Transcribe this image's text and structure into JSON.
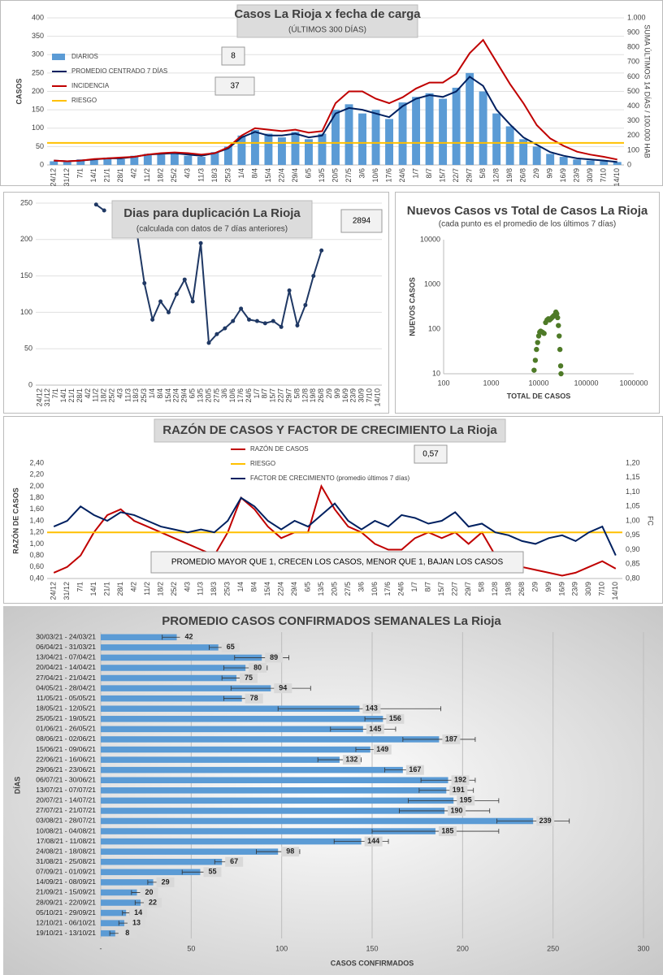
{
  "chart_data": [
    {
      "type": "combo",
      "title": "Casos La Rioja x fecha de carga",
      "subtitle": "(ÚLTIMOS 300 DÍAS)",
      "ylabel": "CASOS",
      "y2label": "SUMA ÚLTIMOS 14 DÍAS / 100.000 HAB",
      "legend": "top-left",
      "grid": true,
      "annotations": [
        "8",
        "37"
      ],
      "categories": [
        "24/12",
        "31/12",
        "7/1",
        "14/1",
        "21/1",
        "28/1",
        "4/2",
        "11/2",
        "18/2",
        "25/2",
        "4/3",
        "11/3",
        "18/3",
        "25/3",
        "1/4",
        "8/4",
        "15/4",
        "22/4",
        "29/4",
        "6/5",
        "13/5",
        "20/5",
        "27/5",
        "3/6",
        "10/6",
        "17/6",
        "24/6",
        "1/7",
        "8/7",
        "15/7",
        "22/7",
        "29/7",
        "5/8",
        "12/8",
        "19/8",
        "26/8",
        "2/9",
        "9/9",
        "16/9",
        "23/9",
        "30/9",
        "7/10",
        "14/10"
      ],
      "ylim": [
        0,
        400
      ],
      "yticks": [
        0,
        50,
        100,
        150,
        200,
        250,
        300,
        350,
        400
      ],
      "y2lim": [
        0,
        1000
      ],
      "y2ticks": [
        0,
        100,
        200,
        300,
        400,
        500,
        600,
        700,
        800,
        900,
        {
          "value": 1000,
          "label": "1.000"
        }
      ],
      "series": [
        {
          "name": "DIARIOS",
          "type": "bar",
          "color": "#5b9bd5",
          "values": [
            10,
            8,
            15,
            14,
            20,
            16,
            25,
            30,
            28,
            35,
            25,
            22,
            35,
            50,
            80,
            95,
            85,
            75,
            90,
            70,
            85,
            150,
            165,
            140,
            150,
            125,
            170,
            185,
            195,
            180,
            210,
            250,
            200,
            140,
            105,
            70,
            50,
            30,
            22,
            15,
            12,
            10,
            8
          ]
        },
        {
          "name": "PROMEDIO CENTRADO 7 DÍAS",
          "type": "line",
          "color": "#002060",
          "values": [
            12,
            10,
            12,
            15,
            18,
            18,
            22,
            28,
            30,
            32,
            28,
            25,
            32,
            45,
            75,
            90,
            80,
            80,
            85,
            75,
            80,
            140,
            155,
            150,
            140,
            130,
            160,
            180,
            190,
            185,
            200,
            240,
            215,
            150,
            110,
            75,
            55,
            35,
            25,
            18,
            15,
            12,
            8
          ]
        },
        {
          "name": "INCIDENCIA",
          "type": "line",
          "axis": "y2",
          "color": "#c00000",
          "values": [
            30,
            25,
            30,
            40,
            45,
            50,
            55,
            70,
            80,
            85,
            80,
            70,
            80,
            120,
            200,
            250,
            240,
            230,
            240,
            220,
            230,
            420,
            500,
            500,
            450,
            420,
            460,
            520,
            560,
            560,
            620,
            760,
            850,
            700,
            550,
            420,
            270,
            180,
            130,
            90,
            70,
            55,
            37
          ]
        },
        {
          "name": "RIESGO",
          "type": "hline",
          "axis": "y2",
          "color": "#ffc000",
          "value": 150
        }
      ]
    },
    {
      "type": "line",
      "title": "Dias para duplicación La Rioja",
      "subtitle": "(calculada con datos de 7 días anteriores)",
      "annotations": [
        "2894"
      ],
      "markers": true,
      "grid": true,
      "categories": [
        "24/12",
        "31/12",
        "7/1",
        "14/1",
        "21/1",
        "28/1",
        "4/2",
        "11/2",
        "18/2",
        "25/2",
        "4/3",
        "11/3",
        "18/3",
        "25/3",
        "1/4",
        "8/4",
        "15/4",
        "22/4",
        "29/4",
        "6/5",
        "13/5",
        "20/5",
        "27/5",
        "3/6",
        "10/6",
        "17/6",
        "24/6",
        "1/7",
        "8/7",
        "15/7",
        "22/7",
        "29/7",
        "5/8",
        "12/8",
        "19/8",
        "26/8",
        "2/9",
        "9/9",
        "16/9",
        "23/9",
        "30/9",
        "7/10",
        "14/10"
      ],
      "ylim": [
        0,
        250
      ],
      "yticks": [
        0,
        50,
        100,
        150,
        200,
        250
      ],
      "series": [
        {
          "name": null,
          "type": "line",
          "color": "#1f3864",
          "values": [
            null,
            null,
            null,
            null,
            null,
            null,
            null,
            248,
            240,
            null,
            null,
            null,
            215,
            140,
            90,
            115,
            100,
            125,
            145,
            115,
            195,
            58,
            70,
            78,
            88,
            105,
            90,
            88,
            85,
            88,
            80,
            130,
            82,
            110,
            150,
            185,
            null,
            null,
            null,
            null,
            null,
            null,
            null
          ]
        }
      ]
    },
    {
      "type": "scatter",
      "title": "Nuevos Casos vs Total de Casos La Rioja",
      "subtitle": "(cada punto es el promedio de los últimos 7 días)",
      "xlabel": "TOTAL DE CASOS",
      "ylabel": "NUEVOS CASOS",
      "xscale": "log",
      "yscale": "log",
      "color": "#4e7a27",
      "xlim": [
        100,
        1000000
      ],
      "xticks": [
        100,
        1000,
        10000,
        100000,
        1000000
      ],
      "ylim": [
        10,
        10000
      ],
      "yticks": [
        10,
        100,
        1000,
        10000
      ],
      "x": [
        8000,
        8500,
        9000,
        9500,
        10000,
        10500,
        11000,
        12000,
        13000,
        14000,
        15000,
        16000,
        17000,
        18000,
        19000,
        20000,
        21000,
        22000,
        23000,
        24000,
        25000,
        26000,
        27000,
        28000,
        29000,
        29500
      ],
      "values": [
        12,
        20,
        35,
        50,
        70,
        85,
        90,
        85,
        80,
        140,
        160,
        170,
        160,
        170,
        180,
        190,
        200,
        210,
        240,
        220,
        180,
        120,
        70,
        35,
        15,
        10
      ]
    },
    {
      "type": "line",
      "title": "RAZÓN DE CASOS Y FACTOR DE CRECIMIENTO La Rioja",
      "ylabel": "RAZÓN DE CASOS",
      "y2label": "FC",
      "legend": "top",
      "annotations": [
        "0,57",
        "PROMEDIO MAYOR QUE 1, CRECEN LOS CASOS, MENOR QUE 1, BAJAN LOS CASOS"
      ],
      "categories": [
        "24/12",
        "31/12",
        "7/1",
        "14/1",
        "21/1",
        "28/1",
        "4/2",
        "11/2",
        "18/2",
        "25/2",
        "4/3",
        "11/3",
        "18/3",
        "25/3",
        "1/4",
        "8/4",
        "15/4",
        "22/4",
        "29/4",
        "6/5",
        "13/5",
        "20/5",
        "27/5",
        "3/6",
        "10/6",
        "17/6",
        "24/6",
        "1/7",
        "8/7",
        "15/7",
        "22/7",
        "29/7",
        "5/8",
        "12/8",
        "19/8",
        "26/8",
        "2/9",
        "9/9",
        "16/9",
        "23/9",
        "30/9",
        "7/10",
        "14/10"
      ],
      "ylim": [
        0.4,
        2.4
      ],
      "yticks": [
        {
          "value": 0.4,
          "label": "0,40"
        },
        {
          "value": 0.6,
          "label": "0,60"
        },
        {
          "value": 0.8,
          "label": "0,80"
        },
        {
          "value": 1.0,
          "label": "1,00"
        },
        {
          "value": 1.2,
          "label": "1,20"
        },
        {
          "value": 1.4,
          "label": "1,40"
        },
        {
          "value": 1.6,
          "label": "1,60"
        },
        {
          "value": 1.8,
          "label": "1,80"
        },
        {
          "value": 2.0,
          "label": "2,00"
        },
        {
          "value": 2.2,
          "label": "2,20"
        },
        {
          "value": 2.4,
          "label": "2,40"
        }
      ],
      "y2lim": [
        0.8,
        1.2
      ],
      "y2ticks": [
        {
          "value": 0.8,
          "label": "0,80"
        },
        {
          "value": 0.85,
          "label": "0,85"
        },
        {
          "value": 0.9,
          "label": "0,90"
        },
        {
          "value": 0.95,
          "label": "0,95"
        },
        {
          "value": 1.0,
          "label": "1,00"
        },
        {
          "value": 1.05,
          "label": "1,05"
        },
        {
          "value": 1.1,
          "label": "1,10"
        },
        {
          "value": 1.15,
          "label": "1,15"
        },
        {
          "value": 1.2,
          "label": "1,20"
        }
      ],
      "series": [
        {
          "name": "RAZÓN DE CASOS",
          "type": "line",
          "color": "#c00000",
          "values": [
            0.5,
            0.6,
            0.8,
            1.2,
            1.5,
            1.6,
            1.4,
            1.3,
            1.2,
            1.1,
            1.0,
            0.9,
            0.8,
            1.2,
            1.8,
            1.6,
            1.3,
            1.1,
            1.2,
            1.2,
            2.0,
            1.6,
            1.3,
            1.2,
            1.0,
            0.9,
            0.9,
            1.1,
            1.2,
            1.1,
            1.2,
            1.0,
            1.2,
            0.8,
            0.7,
            0.6,
            0.55,
            0.5,
            0.45,
            0.5,
            0.6,
            0.7,
            0.57
          ]
        },
        {
          "name": "RIESGO",
          "type": "hline",
          "color": "#ffc000",
          "value": 1.2
        },
        {
          "name": "FACTOR DE CRECIMIENTO (promedio últimos 7 días)",
          "type": "line",
          "axis": "y2",
          "color": "#002060",
          "values": [
            0.98,
            1.0,
            1.05,
            1.02,
            1.0,
            1.03,
            1.02,
            1.0,
            0.98,
            0.97,
            0.96,
            0.97,
            0.96,
            1.0,
            1.08,
            1.05,
            1.0,
            0.97,
            1.0,
            0.98,
            1.02,
            1.06,
            1.0,
            0.97,
            1.0,
            0.98,
            1.02,
            1.01,
            0.99,
            1.0,
            1.03,
            0.98,
            0.99,
            0.96,
            0.95,
            0.93,
            0.92,
            0.94,
            0.95,
            0.93,
            0.96,
            0.98,
            0.88
          ]
        }
      ]
    },
    {
      "type": "bar",
      "orientation": "horizontal",
      "title": "PROMEDIO CASOS CONFIRMADOS SEMANALES La Rioja",
      "xlabel": "CASOS CONFIRMADOS",
      "ylabel": "DÍAS",
      "color": "#5b9bd5",
      "grid": true,
      "categories": [
        "30/03/21 - 24/03/21",
        "06/04/21 - 31/03/21",
        "13/04/21 - 07/04/21",
        "20/04/21 - 14/04/21",
        "27/04/21 - 21/04/21",
        "04/05/21 - 28/04/21",
        "11/05/21 - 05/05/21",
        "18/05/21 - 12/05/21",
        "25/05/21 - 19/05/21",
        "01/06/21 - 26/05/21",
        "08/06/21 - 02/06/21",
        "15/06/21 - 09/06/21",
        "22/06/21 - 16/06/21",
        "29/06/21 - 23/06/21",
        "06/07/21 - 30/06/21",
        "13/07/21 - 07/07/21",
        "20/07/21 - 14/07/21",
        "27/07/21 - 21/07/21",
        "03/08/21 - 28/07/21",
        "10/08/21 - 04/08/21",
        "17/08/21 - 11/08/21",
        "24/08/21 - 18/08/21",
        "31/08/21 - 25/08/21",
        "07/09/21 - 01/09/21",
        "14/09/21 - 08/09/21",
        "21/09/21 - 15/09/21",
        "28/09/21 - 22/09/21",
        "05/10/21 - 29/09/21",
        "12/10/21 - 06/10/21",
        "19/10/21 - 13/10/21"
      ],
      "values": [
        42,
        65,
        89,
        80,
        75,
        94,
        78,
        143,
        156,
        145,
        187,
        149,
        132,
        167,
        192,
        191,
        195,
        190,
        239,
        185,
        144,
        98,
        67,
        55,
        29,
        20,
        22,
        14,
        13,
        8
      ],
      "errors": [
        8,
        5,
        15,
        12,
        8,
        22,
        10,
        45,
        10,
        18,
        20,
        8,
        12,
        10,
        15,
        15,
        25,
        25,
        20,
        35,
        15,
        12,
        4,
        10,
        3,
        3,
        3,
        2,
        3,
        3
      ],
      "xlim": [
        0,
        300
      ],
      "xticks": [
        {
          "value": 0,
          "label": "-"
        },
        50,
        100,
        150,
        200,
        250,
        300
      ]
    }
  ]
}
